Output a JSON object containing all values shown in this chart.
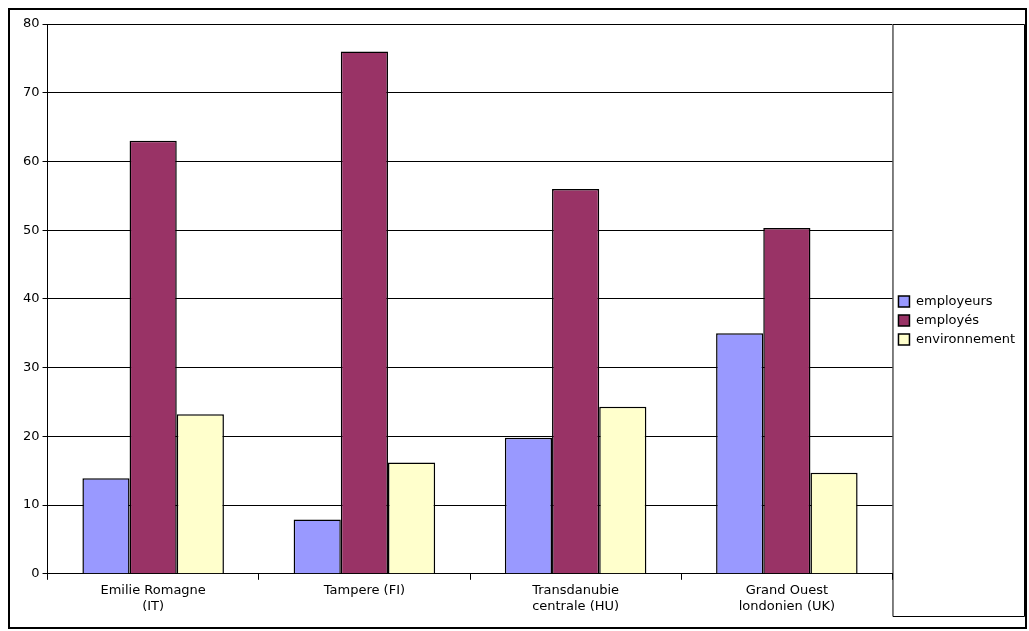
{
  "chart_data": {
    "type": "bar",
    "categories": [
      "Emilie Romagne (IT)",
      "Tampere (FI)",
      "Transdanubie centrale (HU)",
      "Grand Ouest londonien (UK)"
    ],
    "series": [
      {
        "name": "employeurs",
        "color": "#9999ff",
        "values": [
          13.9,
          7.9,
          19.8,
          35
        ]
      },
      {
        "name": "employés",
        "color": "#993366",
        "values": [
          63,
          76,
          56,
          50.3
        ]
      },
      {
        "name": "environnement",
        "color": "#ffffcc",
        "values": [
          23.2,
          16.2,
          24.3,
          14.7
        ]
      }
    ],
    "ylim": [
      0,
      80
    ],
    "yticks": [
      0,
      10,
      20,
      30,
      40,
      50,
      60,
      70,
      80
    ],
    "grid": "y",
    "legend": "right"
  }
}
